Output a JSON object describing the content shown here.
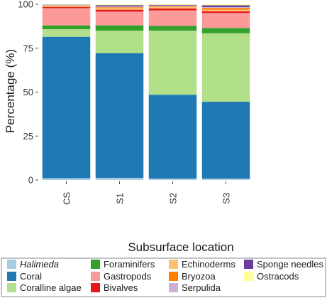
{
  "chart_data": {
    "type": "bar",
    "stacked": true,
    "ylabel": "Percentage (%)",
    "xlabel": "Subsurface location",
    "ylim": [
      0,
      100
    ],
    "yticks": [
      0,
      25,
      50,
      75,
      100
    ],
    "categories": [
      "CS",
      "S1",
      "S2",
      "S3"
    ],
    "legend_position": "bottom",
    "series": [
      {
        "name": "Halimeda",
        "color": "#a6cee3",
        "italic": true,
        "values": [
          1.0,
          1.2,
          0.8,
          0.8
        ]
      },
      {
        "name": "Coral",
        "color": "#1f78b4",
        "values": [
          80.5,
          71.0,
          47.7,
          43.7
        ]
      },
      {
        "name": "Coralline algae",
        "color": "#b2df8a",
        "values": [
          4.3,
          12.8,
          36.5,
          39.0
        ]
      },
      {
        "name": "Foraminifers",
        "color": "#33a02c",
        "values": [
          2.2,
          3.0,
          2.7,
          3.0
        ]
      },
      {
        "name": "Gastropods",
        "color": "#fb9a99",
        "values": [
          9.8,
          7.8,
          8.8,
          8.5
        ]
      },
      {
        "name": "Bivalves",
        "color": "#e31a1c",
        "values": [
          0.6,
          1.1,
          1.1,
          1.0
        ]
      },
      {
        "name": "Echinoderms",
        "color": "#fdbf6f",
        "values": [
          0.6,
          0.9,
          0.9,
          0.9
        ]
      },
      {
        "name": "Bryozoa",
        "color": "#ff7f00",
        "values": [
          0.3,
          0.5,
          0.3,
          1.0
        ]
      },
      {
        "name": "Serpulida",
        "color": "#cab2d6",
        "values": [
          0.4,
          0.5,
          0.5,
          0.5
        ]
      },
      {
        "name": "Sponge needles",
        "color": "#6a3d9a",
        "values": [
          0.1,
          0.7,
          0.4,
          1.0
        ]
      },
      {
        "name": "Ostracods",
        "color": "#ffff99",
        "values": [
          0.2,
          0.5,
          0.3,
          0.6
        ]
      }
    ],
    "legend_order": [
      "Halimeda",
      "Foraminifers",
      "Echinoderms",
      "Sponge needles",
      "Coral",
      "Gastropods",
      "Bryozoa",
      "Ostracods",
      "Coralline algae",
      "Bivalves",
      "Serpulida"
    ]
  }
}
